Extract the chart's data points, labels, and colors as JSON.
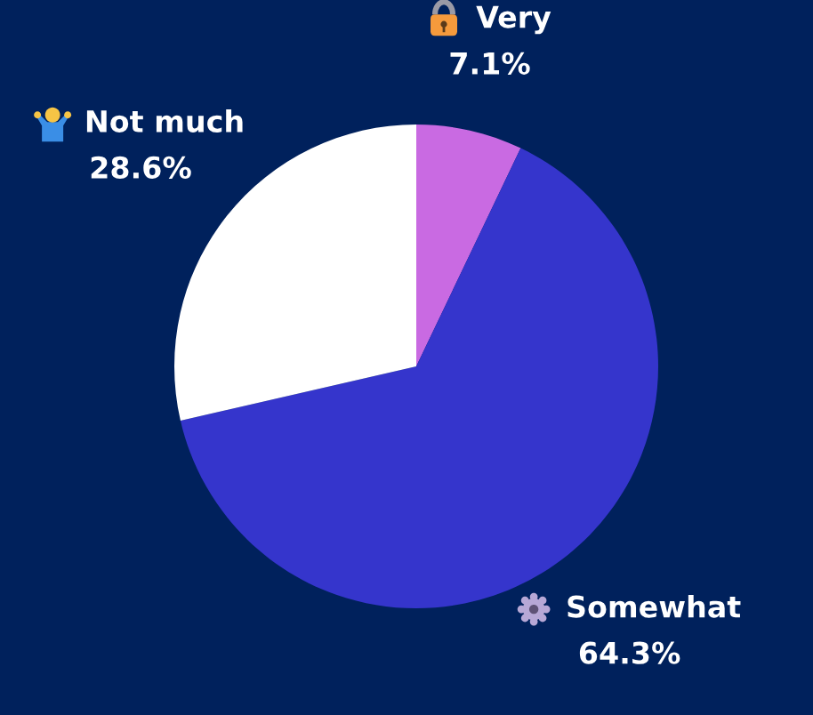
{
  "chart_data": {
    "type": "pie",
    "categories": [
      "Very",
      "Somewhat",
      "Not much"
    ],
    "values": [
      7.1,
      64.3,
      28.6
    ],
    "colors": [
      "#c96ae2",
      "#3535cc",
      "#ffffff"
    ],
    "value_labels": [
      "7.1%",
      "64.3%",
      "28.6%"
    ]
  }
}
